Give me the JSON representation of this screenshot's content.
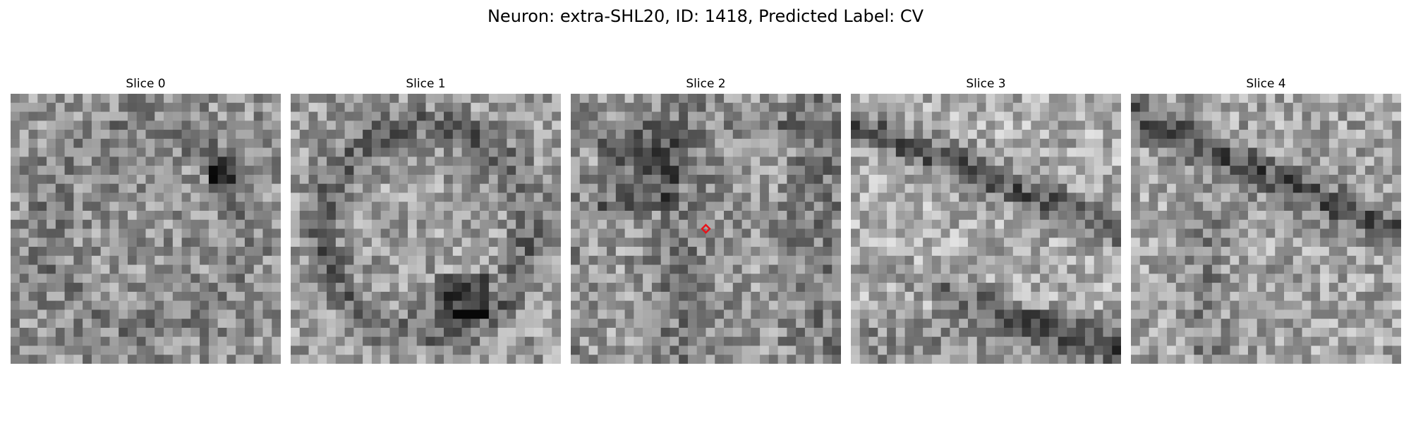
{
  "figure": {
    "title": "Neuron: extra-SHL20, ID: 1418, Predicted Label: CV"
  },
  "panels": [
    {
      "title": "Slice 0",
      "seed": 101,
      "marker": false
    },
    {
      "title": "Slice 1",
      "seed": 202,
      "marker": false
    },
    {
      "title": "Slice 2",
      "seed": 303,
      "marker": true
    },
    {
      "title": "Slice 3",
      "seed": 404,
      "marker": false
    },
    {
      "title": "Slice 4",
      "seed": 505,
      "marker": false
    }
  ],
  "image_style": {
    "colormap": "gray",
    "marker_color": "#e8121a",
    "marker_shape": "diamond"
  }
}
